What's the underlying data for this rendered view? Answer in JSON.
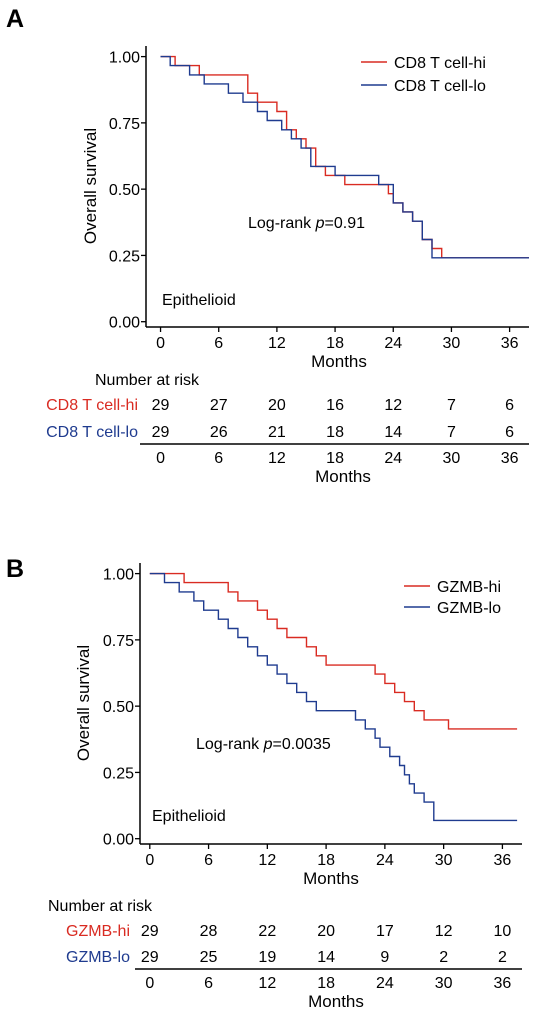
{
  "colors": {
    "hi": "#d92b22",
    "lo": "#1f3b8f",
    "axis": "#000000"
  },
  "panels": [
    {
      "label": "A",
      "ylabel": "Overall  survival",
      "xlabel": "Months",
      "subgroup": "Epithelioid",
      "pvalue": {
        "prefix": "Log-rank ",
        "p": "p",
        "value": "=0.91"
      },
      "risk_title": "Number at risk",
      "risk_xlabel": "Months",
      "chart_data": {
        "type": "line",
        "title": "",
        "xlabel": "Months",
        "ylabel": "Overall  survival",
        "xlim": [
          -1.5,
          38
        ],
        "ylim": [
          -0.02,
          1.04
        ],
        "xticks": [
          0,
          6,
          12,
          18,
          24,
          30,
          36
        ],
        "yticks": [
          0.0,
          0.25,
          0.5,
          0.75,
          1.0
        ],
        "ytick_labels": [
          "0.00",
          "0.25",
          "0.50",
          "0.75",
          "1.00"
        ],
        "legend_position": "top-right",
        "series": [
          {
            "name": "CD8 T cell-hi",
            "color_key": "hi",
            "x": [
              0,
              1.5,
              2.5,
              4,
              5.5,
              8,
              9,
              10,
              11,
              12,
              13,
              14,
              15,
              16,
              17,
              18,
              19,
              20,
              21,
              22,
              23.5,
              24,
              25,
              26,
              27,
              28,
              29,
              31,
              38
            ],
            "y": [
              1.0,
              0.966,
              0.966,
              0.931,
              0.931,
              0.931,
              0.862,
              0.828,
              0.828,
              0.793,
              0.724,
              0.69,
              0.655,
              0.586,
              0.552,
              0.552,
              0.517,
              0.517,
              0.517,
              0.517,
              0.483,
              0.448,
              0.414,
              0.379,
              0.31,
              0.276,
              0.241,
              0.241,
              0.241
            ]
          },
          {
            "name": "CD8 T cell-lo",
            "color_key": "lo",
            "x": [
              0,
              1,
              3,
              4.5,
              7,
              8.5,
              10,
              11,
              12.5,
              13.5,
              14.5,
              15.5,
              17,
              18,
              19.5,
              21,
              22.5,
              24,
              25,
              26,
              27,
              28,
              38
            ],
            "y": [
              1.0,
              0.966,
              0.931,
              0.897,
              0.862,
              0.828,
              0.793,
              0.759,
              0.724,
              0.69,
              0.655,
              0.586,
              0.586,
              0.552,
              0.552,
              0.552,
              0.517,
              0.448,
              0.414,
              0.379,
              0.31,
              0.241,
              0.241
            ]
          }
        ]
      },
      "risk_table": {
        "times": [
          "0",
          "6",
          "12",
          "18",
          "24",
          "30",
          "36"
        ],
        "rows": [
          {
            "label": "CD8 T cell-hi",
            "color_key": "hi",
            "values": [
              "29",
              "27",
              "20",
              "16",
              "12",
              "7",
              "6"
            ]
          },
          {
            "label": "CD8 T cell-lo",
            "color_key": "lo",
            "values": [
              "29",
              "26",
              "21",
              "18",
              "14",
              "7",
              "6"
            ]
          }
        ]
      }
    },
    {
      "label": "B",
      "ylabel": "Overall  survival",
      "xlabel": "Months",
      "subgroup": "Epithelioid",
      "pvalue": {
        "prefix": "Log-rank ",
        "p": "p",
        "value": "=0.0035"
      },
      "risk_title": "Number at risk",
      "risk_xlabel": "Months",
      "chart_data": {
        "type": "line",
        "title": "",
        "xlabel": "Months",
        "ylabel": "Overall  survival",
        "xlim": [
          -1,
          38
        ],
        "ylim": [
          -0.02,
          1.04
        ],
        "xticks": [
          0,
          6,
          12,
          18,
          24,
          30,
          36
        ],
        "yticks": [
          0.0,
          0.25,
          0.5,
          0.75,
          1.0
        ],
        "ytick_labels": [
          "0.00",
          "0.25",
          "0.50",
          "0.75",
          "1.00"
        ],
        "legend_position": "top-right",
        "series": [
          {
            "name": "GZMB-hi",
            "color_key": "hi",
            "x": [
              0,
              3.5,
              6.5,
              8,
              9,
              11,
              12,
              13,
              14,
              16,
              17,
              18,
              19,
              21,
              23,
              24,
              25,
              26,
              27,
              28,
              29,
              30.5,
              37.5
            ],
            "y": [
              1.0,
              0.966,
              0.966,
              0.931,
              0.897,
              0.862,
              0.828,
              0.793,
              0.759,
              0.724,
              0.69,
              0.655,
              0.655,
              0.655,
              0.621,
              0.586,
              0.552,
              0.517,
              0.483,
              0.448,
              0.448,
              0.414,
              0.414
            ]
          },
          {
            "name": "GZMB-lo",
            "color_key": "lo",
            "x": [
              0,
              1.5,
              3,
              4.5,
              5.5,
              7,
              8,
              9,
              10,
              11,
              12,
              13,
              14,
              15,
              16,
              17,
              19,
              21,
              22,
              23,
              23.5,
              24.5,
              25.5,
              26,
              26.5,
              27,
              28,
              29,
              37.5
            ],
            "y": [
              1.0,
              0.966,
              0.931,
              0.897,
              0.862,
              0.828,
              0.793,
              0.759,
              0.724,
              0.69,
              0.655,
              0.621,
              0.586,
              0.552,
              0.517,
              0.483,
              0.483,
              0.448,
              0.414,
              0.379,
              0.345,
              0.31,
              0.276,
              0.241,
              0.207,
              0.172,
              0.138,
              0.069,
              0.069
            ]
          }
        ]
      },
      "risk_table": {
        "times": [
          "0",
          "6",
          "12",
          "18",
          "24",
          "30",
          "36"
        ],
        "rows": [
          {
            "label": "GZMB-hi",
            "color_key": "hi",
            "values": [
              "29",
              "28",
              "22",
              "20",
              "17",
              "12",
              "10"
            ]
          },
          {
            "label": "GZMB-lo",
            "color_key": "lo",
            "values": [
              "29",
              "25",
              "19",
              "14",
              "9",
              "2",
              "2"
            ]
          }
        ]
      }
    }
  ]
}
